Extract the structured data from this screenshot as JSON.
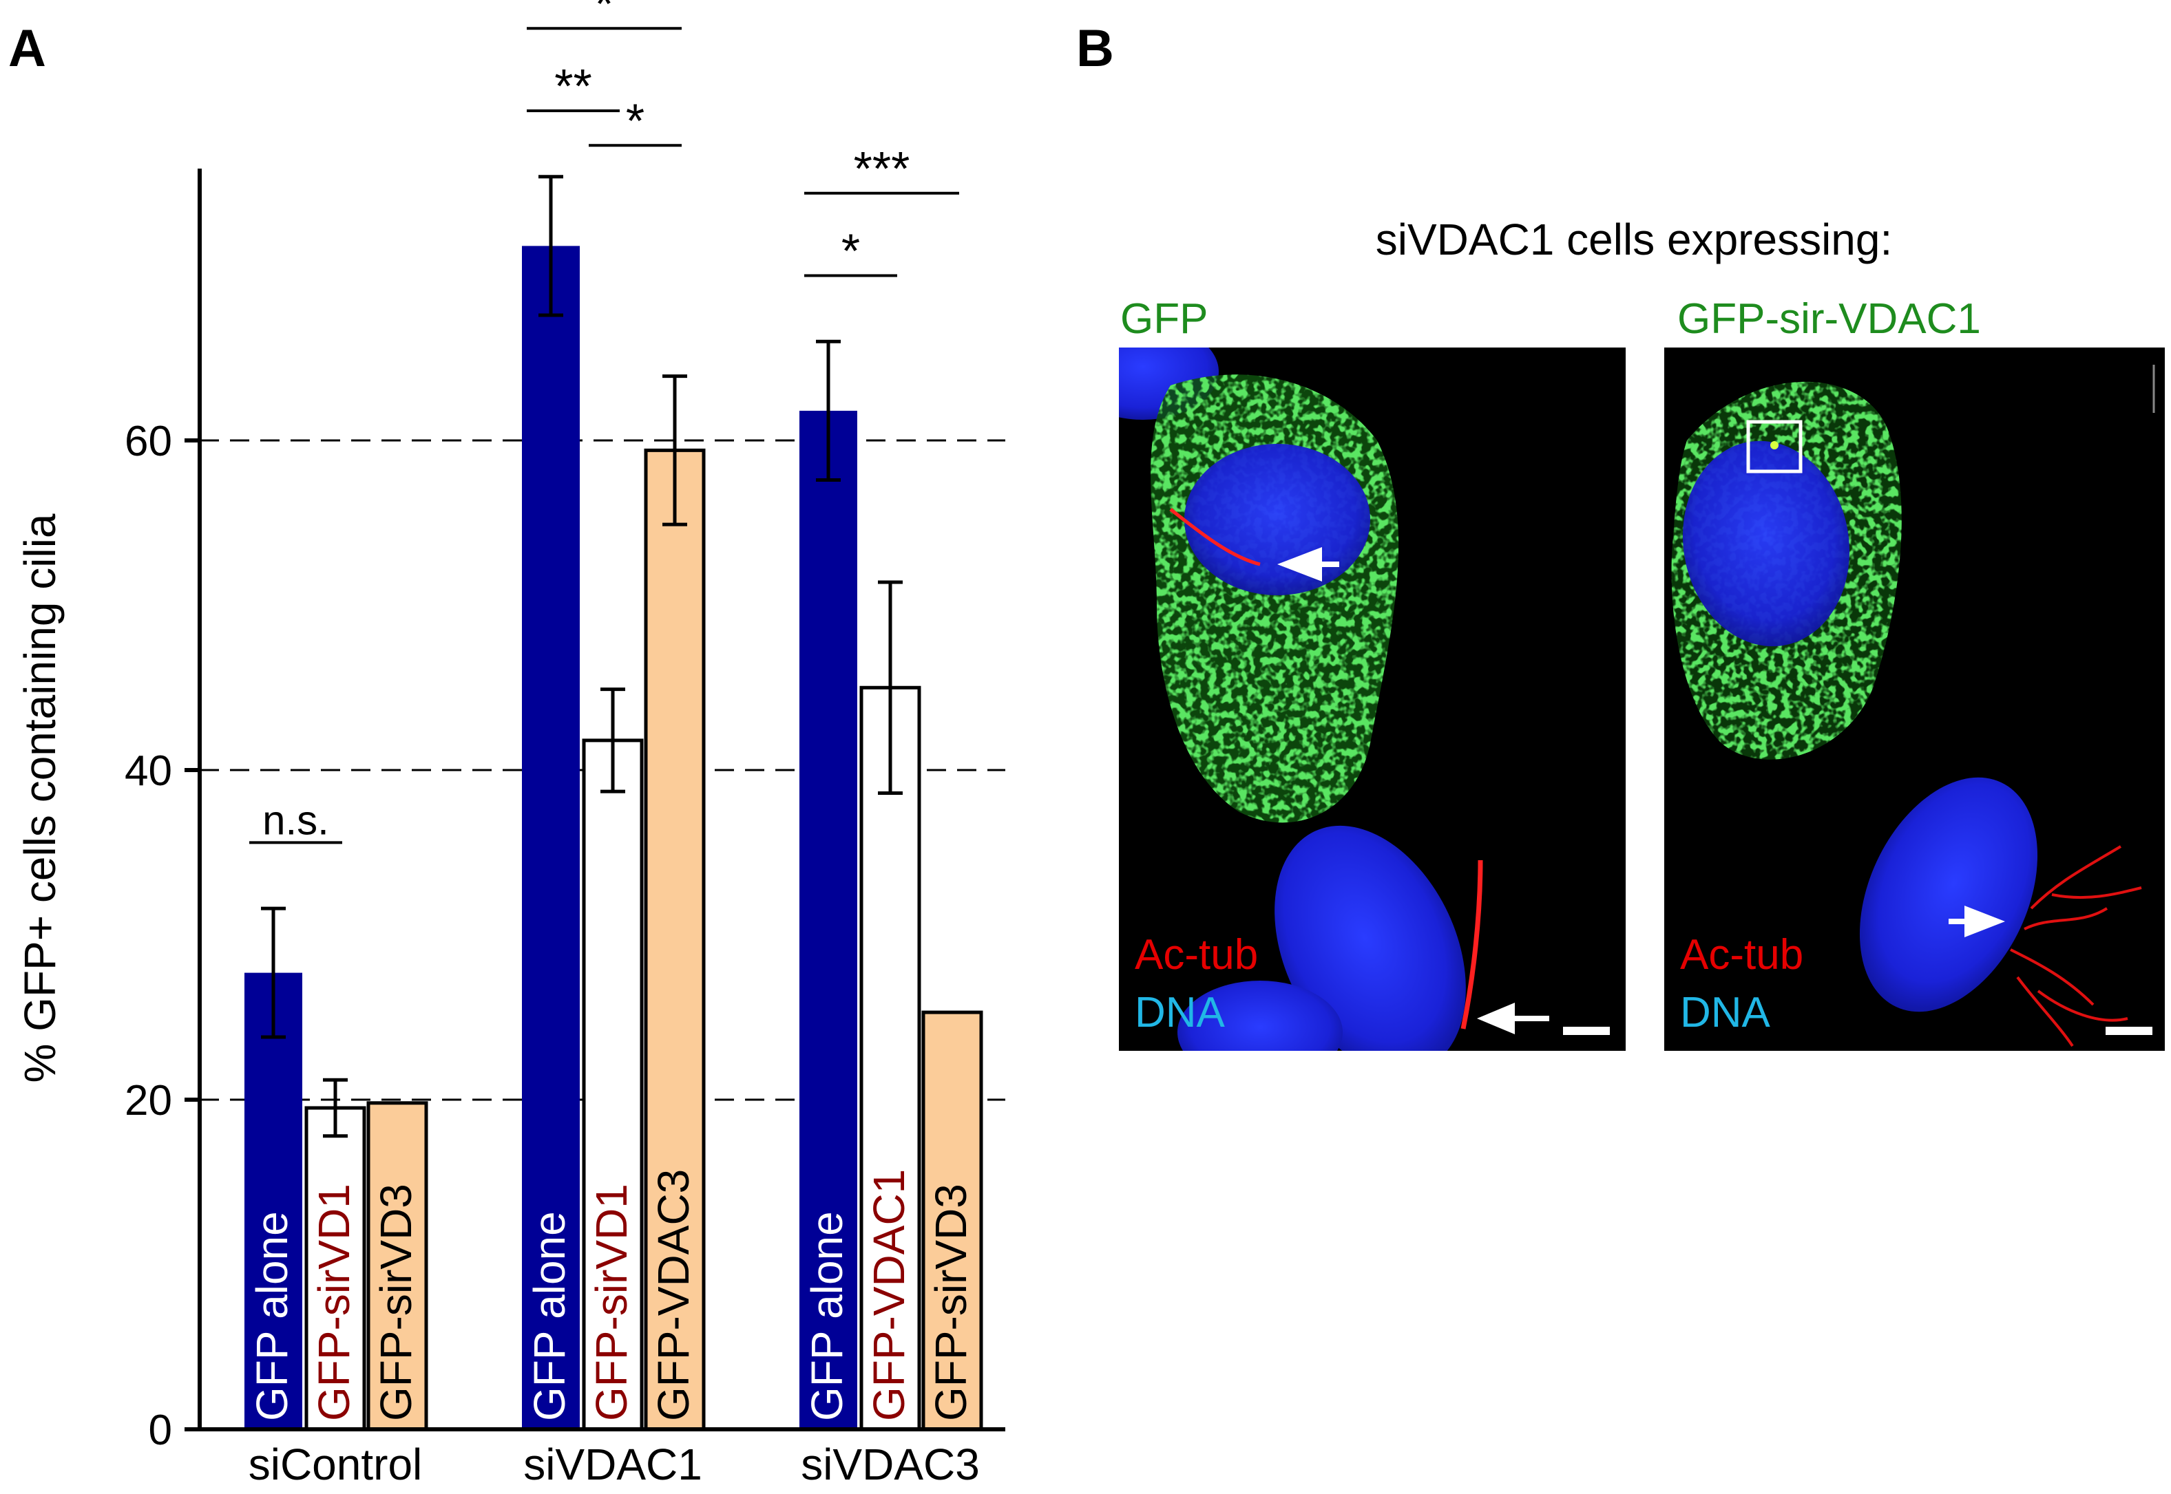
{
  "panel_a": {
    "label": "A",
    "chart_data": {
      "type": "bar",
      "ylabel": "% GFP+ cells containing cilia",
      "ylim": [
        0,
        80
      ],
      "yticks": [
        0,
        20,
        40,
        60
      ],
      "grid_lines": [
        20,
        40,
        60
      ],
      "groups": [
        {
          "label": "siControl",
          "bars": [
            {
              "label": "GFP alone",
              "value": 27.7,
              "error": 3.9,
              "fill": "#000096",
              "text_color": "#ffffff"
            },
            {
              "label": "GFP-sirVD1",
              "value": 19.5,
              "error": 1.7,
              "fill": "#ffffff",
              "text_color": "#8b0000"
            },
            {
              "label": "GFP-sirVD3",
              "value": 19.8,
              "error": null,
              "fill": "#fbcc99",
              "text_color": "#000000"
            }
          ],
          "significance": [
            {
              "text": "n.s.",
              "from": 0,
              "to": 1
            }
          ]
        },
        {
          "label": "siVDAC1",
          "bars": [
            {
              "label": "GFP alone",
              "value": 71.8,
              "error": 4.2,
              "fill": "#000096",
              "text_color": "#ffffff"
            },
            {
              "label": "GFP-sirVD1",
              "value": 41.8,
              "error": 3.1,
              "fill": "#ffffff",
              "text_color": "#8b0000"
            },
            {
              "label": "GFP-VDAC3",
              "value": 59.4,
              "error": 4.5,
              "fill": "#fbcc99",
              "text_color": "#000000"
            }
          ],
          "significance": [
            {
              "text": "**",
              "from": 0,
              "to": 1
            },
            {
              "text": "*",
              "from": 0,
              "to": 2
            },
            {
              "text": "*",
              "from": 1,
              "to": 2
            }
          ]
        },
        {
          "label": "siVDAC3",
          "bars": [
            {
              "label": "GFP alone",
              "value": 61.8,
              "error": 4.2,
              "fill": "#000096",
              "text_color": "#ffffff"
            },
            {
              "label": "GFP-VDAC1",
              "value": 45.0,
              "error": 6.4,
              "fill": "#ffffff",
              "text_color": "#8b0000"
            },
            {
              "label": "GFP-sirVD3",
              "value": 25.3,
              "error": null,
              "fill": "#fbcc99",
              "text_color": "#000000"
            }
          ],
          "significance": [
            {
              "text": "*",
              "from": 0,
              "to": 1
            },
            {
              "text": "***",
              "from": 0,
              "to": 2
            }
          ]
        }
      ]
    }
  },
  "panel_b": {
    "label": "B",
    "title": "siVDAC1 cells expressing:",
    "images": [
      {
        "title": "GFP",
        "legend_red": "Ac-tub",
        "legend_dna": "DNA"
      },
      {
        "title": "GFP-sir-VDAC1",
        "legend_red": "Ac-tub",
        "legend_dna": "DNA"
      }
    ],
    "colors": {
      "green": "#1e8c1e",
      "red": "#e60000",
      "dna": "#21b7e6"
    }
  }
}
